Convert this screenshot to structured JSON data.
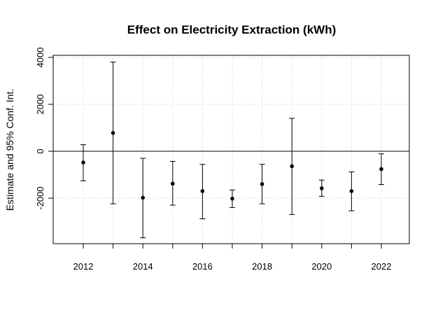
{
  "chart_data": {
    "type": "scatter",
    "title": "Effect on Electricity Extraction (kWh)",
    "xlabel": "",
    "ylabel": "Estimate and 95% Conf. Int.",
    "x": [
      2012,
      2013,
      2014,
      2015,
      2016,
      2017,
      2018,
      2019,
      2020,
      2021,
      2022
    ],
    "estimate": [
      -480,
      780,
      -1980,
      -1380,
      -1700,
      -2020,
      -1400,
      -640,
      -1580,
      -1700,
      -760
    ],
    "ci_lower": [
      -1260,
      -2240,
      -3690,
      -2300,
      -2880,
      -2400,
      -2240,
      -2700,
      -1920,
      -2540,
      -1420
    ],
    "ci_upper": [
      280,
      3800,
      -300,
      -430,
      -560,
      -1650,
      -560,
      1400,
      -1230,
      -880,
      -110
    ],
    "xlim": [
      2011,
      2023
    ],
    "ylim": [
      -4000,
      4000
    ],
    "xticks": [
      2012,
      2014,
      2016,
      2018,
      2020,
      2022
    ],
    "yticks": [
      -2000,
      0,
      2000,
      4000
    ],
    "reference_line": 0,
    "grid": true,
    "legend": "none"
  }
}
